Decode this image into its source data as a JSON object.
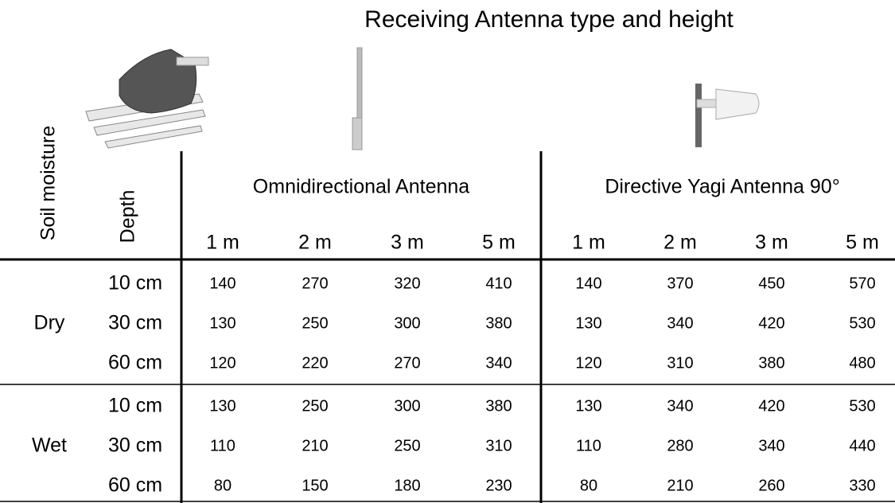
{
  "title": "Receiving Antenna type and height",
  "table": {
    "corner": [
      "Soil moisture",
      "Depth"
    ],
    "groups": [
      {
        "name": "Omnidirectional Antenna",
        "heights": [
          "1 m",
          "2 m",
          "3 m",
          "5 m"
        ]
      },
      {
        "name": "Directive Yagi Antenna 90°",
        "heights": [
          "1 m",
          "2 m",
          "3 m",
          "5 m"
        ]
      }
    ],
    "sections": [
      {
        "moisture": "Dry",
        "rows": [
          {
            "depth": "10 cm",
            "values": [
              140,
              270,
              320,
              410,
              140,
              370,
              450,
              570
            ]
          },
          {
            "depth": "30 cm",
            "values": [
              130,
              250,
              300,
              380,
              130,
              340,
              420,
              530
            ]
          },
          {
            "depth": "60 cm",
            "values": [
              120,
              220,
              270,
              340,
              120,
              310,
              380,
              480
            ]
          }
        ]
      },
      {
        "moisture": "Wet",
        "rows": [
          {
            "depth": "10 cm",
            "values": [
              130,
              250,
              300,
              380,
              130,
              340,
              420,
              530
            ]
          },
          {
            "depth": "30 cm",
            "values": [
              110,
              210,
              250,
              310,
              110,
              280,
              340,
              440
            ]
          },
          {
            "depth": "60 cm",
            "values": [
              80,
              150,
              180,
              230,
              80,
              210,
              260,
              330
            ]
          }
        ]
      }
    ]
  }
}
